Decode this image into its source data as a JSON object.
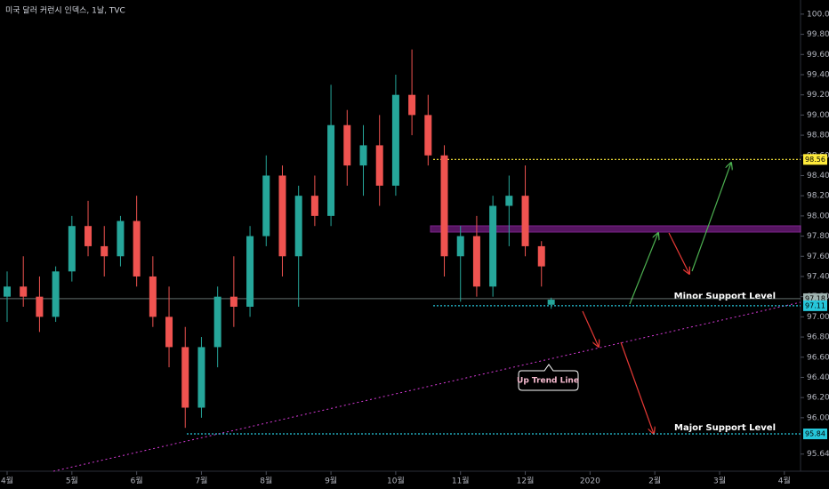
{
  "chart_data": {
    "type": "candlestick",
    "title": "미국 달러 커런시 인덱스, 1날, TVC",
    "x": [
      0,
      0.25,
      0.5,
      0.75,
      1,
      1.25,
      1.5,
      1.75,
      2,
      2.25,
      2.5,
      2.75,
      3,
      3.25,
      3.5,
      3.75,
      4,
      4.25,
      4.5,
      4.75,
      5,
      5.25,
      5.5,
      5.75,
      6,
      6.25,
      6.5,
      6.75,
      7,
      7.25,
      7.5,
      7.75,
      8,
      8.25,
      8.4
    ],
    "open": [
      97.2,
      97.3,
      97.2,
      97.0,
      97.45,
      97.9,
      97.7,
      97.6,
      97.95,
      97.4,
      97.0,
      96.7,
      96.1,
      96.7,
      97.2,
      97.1,
      97.8,
      98.4,
      97.6,
      98.2,
      98.0,
      98.9,
      98.5,
      98.7,
      98.3,
      99.2,
      99.0,
      98.6,
      97.6,
      97.8,
      97.3,
      98.1,
      98.2,
      97.7,
      97.12
    ],
    "high": [
      97.45,
      97.6,
      97.4,
      97.5,
      98.0,
      98.15,
      97.9,
      98.0,
      98.2,
      97.6,
      97.3,
      96.9,
      96.8,
      97.3,
      97.6,
      97.9,
      98.6,
      98.5,
      98.3,
      98.4,
      99.3,
      99.05,
      98.9,
      99.0,
      99.4,
      99.65,
      99.2,
      98.7,
      97.9,
      98.0,
      98.2,
      98.4,
      98.5,
      97.75,
      97.19
    ],
    "low": [
      96.95,
      97.1,
      96.85,
      96.95,
      97.35,
      97.6,
      97.4,
      97.5,
      97.3,
      96.9,
      96.5,
      95.9,
      96.0,
      96.5,
      96.9,
      97.0,
      97.7,
      97.4,
      97.1,
      97.9,
      97.9,
      98.3,
      98.2,
      98.1,
      98.2,
      98.8,
      98.5,
      97.4,
      97.15,
      97.2,
      97.2,
      97.7,
      97.6,
      97.3,
      97.08
    ],
    "close": [
      97.3,
      97.2,
      97.0,
      97.45,
      97.9,
      97.7,
      97.6,
      97.95,
      97.4,
      97.0,
      96.7,
      96.1,
      96.7,
      97.2,
      97.1,
      97.8,
      98.4,
      97.6,
      98.2,
      98.0,
      98.9,
      98.5,
      98.7,
      98.3,
      99.2,
      99.0,
      98.6,
      97.6,
      97.8,
      97.3,
      98.1,
      98.2,
      97.7,
      97.5,
      97.17
    ],
    "up_color": "#26a69a",
    "down_color": "#ef5350",
    "xlim": [
      -0.11,
      12.25
    ],
    "xticks": [
      {
        "value": 0,
        "label": "4월"
      },
      {
        "value": 1,
        "label": "5월"
      },
      {
        "value": 2,
        "label": "6월"
      },
      {
        "value": 3,
        "label": "7월"
      },
      {
        "value": 4,
        "label": "8월"
      },
      {
        "value": 5,
        "label": "9월"
      },
      {
        "value": 6,
        "label": "10월"
      },
      {
        "value": 7,
        "label": "11월"
      },
      {
        "value": 8,
        "label": "12월"
      },
      {
        "value": 9,
        "label": "2020"
      },
      {
        "value": 10,
        "label": "2월"
      },
      {
        "value": 11,
        "label": "3월"
      },
      {
        "value": 12,
        "label": "4월"
      }
    ],
    "ylim": [
      95.47,
      100.14
    ],
    "yticks": [
      {
        "value": 100,
        "label": "100.00"
      },
      {
        "value": 99.8,
        "label": "99.80"
      },
      {
        "value": 99.6,
        "label": "99.60"
      },
      {
        "value": 99.4,
        "label": "99.40"
      },
      {
        "value": 99.2,
        "label": "99.20"
      },
      {
        "value": 99,
        "label": "99.00"
      },
      {
        "value": 98.8,
        "label": "98.80"
      },
      {
        "value": 98.6,
        "label": "98.60"
      },
      {
        "value": 98.4,
        "label": "98.40"
      },
      {
        "value": 98.2,
        "label": "98.20"
      },
      {
        "value": 98,
        "label": "98.00"
      },
      {
        "value": 97.8,
        "label": "97.80"
      },
      {
        "value": 97.6,
        "label": "97.60"
      },
      {
        "value": 97.4,
        "label": "97.40"
      },
      {
        "value": 97.2,
        "label": "97.20"
      },
      {
        "value": 97,
        "label": "97.00"
      },
      {
        "value": 96.8,
        "label": "96.80"
      },
      {
        "value": 96.6,
        "label": "96.60"
      },
      {
        "value": 96.4,
        "label": "96.40"
      },
      {
        "value": 96.2,
        "label": "96.20"
      },
      {
        "value": 96,
        "label": "96.00"
      },
      95.64
    ],
    "levels": [
      {
        "value": 98.56,
        "color": "#ffeb3b"
      },
      {
        "value": 97.18,
        "color": "#9fb3b0"
      },
      {
        "value": 97.11,
        "color": "#26c6da"
      },
      {
        "value": 95.84,
        "color": "#26c6da"
      }
    ],
    "annotations": [
      "Minor Support Level",
      "Major Support Level",
      "Up Trend Line"
    ]
  }
}
